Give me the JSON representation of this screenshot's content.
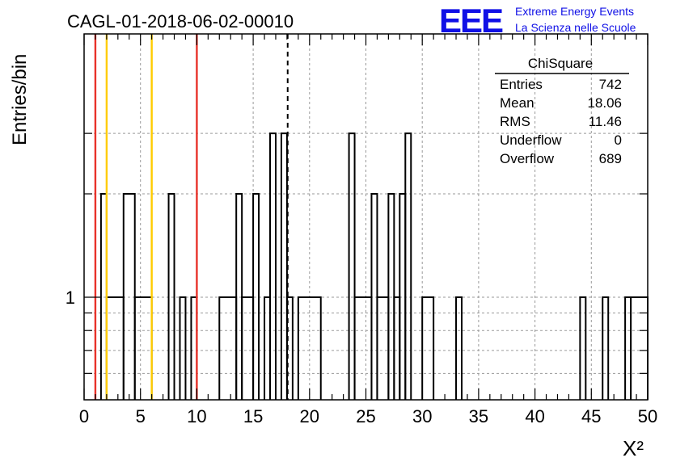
{
  "chart_data": {
    "type": "histogram",
    "title": "CAGL-01-2018-06-02-00010",
    "xlabel": "X²",
    "ylabel": "Entries/bin",
    "xlim": [
      0,
      50
    ],
    "x_ticks": [
      "0",
      "5",
      "10",
      "15",
      "20",
      "25",
      "30",
      "35",
      "40",
      "45",
      "50"
    ],
    "y_scale": "log",
    "y_tick_labels": [
      "1"
    ],
    "grid": true,
    "bin_width": 0.5,
    "bins": [
      [
        1.5,
        2.0,
        2
      ],
      [
        2.0,
        3.5,
        1
      ],
      [
        3.5,
        4.5,
        2
      ],
      [
        4.5,
        6.0,
        1
      ],
      [
        7.5,
        8.0,
        2
      ],
      [
        8.5,
        9.0,
        1
      ],
      [
        9.5,
        10.0,
        1
      ],
      [
        12.0,
        13.5,
        1
      ],
      [
        13.5,
        14.0,
        2
      ],
      [
        14.0,
        15.0,
        1
      ],
      [
        15.0,
        15.5,
        2
      ],
      [
        16.0,
        16.5,
        1
      ],
      [
        16.5,
        17.0,
        3
      ],
      [
        17.5,
        18.0,
        3
      ],
      [
        18.0,
        18.5,
        1
      ],
      [
        19.0,
        21.0,
        1
      ],
      [
        23.5,
        24.0,
        3
      ],
      [
        24.0,
        25.5,
        1
      ],
      [
        25.5,
        26.0,
        2
      ],
      [
        26.0,
        27.0,
        1
      ],
      [
        27.0,
        27.5,
        2
      ],
      [
        27.5,
        28.0,
        1
      ],
      [
        28.0,
        28.5,
        2
      ],
      [
        28.5,
        29.0,
        3
      ],
      [
        30.0,
        31.0,
        1
      ],
      [
        33.0,
        33.5,
        1
      ],
      [
        44.0,
        44.5,
        1
      ],
      [
        46.0,
        46.5,
        1
      ],
      [
        48.0,
        48.5,
        1
      ],
      [
        48.5,
        50.0,
        1
      ]
    ],
    "vertical_lines": [
      {
        "x": 1,
        "color": "#e8322a"
      },
      {
        "x": 2,
        "color": "#ffcc00"
      },
      {
        "x": 6,
        "color": "#ffcc00"
      },
      {
        "x": 10,
        "color": "#e8322a"
      }
    ],
    "mean_line": {
      "x": 18.06,
      "style": "dashed",
      "color": "#000000"
    },
    "stats": {
      "title": "ChiSquare",
      "rows": [
        {
          "label": "Entries",
          "value": "742"
        },
        {
          "label": "Mean",
          "value": "18.06"
        },
        {
          "label": "RMS",
          "value": "11.46"
        },
        {
          "label": "Underflow",
          "value": "0"
        },
        {
          "label": "Overflow",
          "value": "689"
        }
      ]
    }
  },
  "branding": {
    "logo_text": "EEE",
    "line1": "Extreme Energy Events",
    "line2": "La Scienza nelle Scuole",
    "color": "#1010e6"
  }
}
